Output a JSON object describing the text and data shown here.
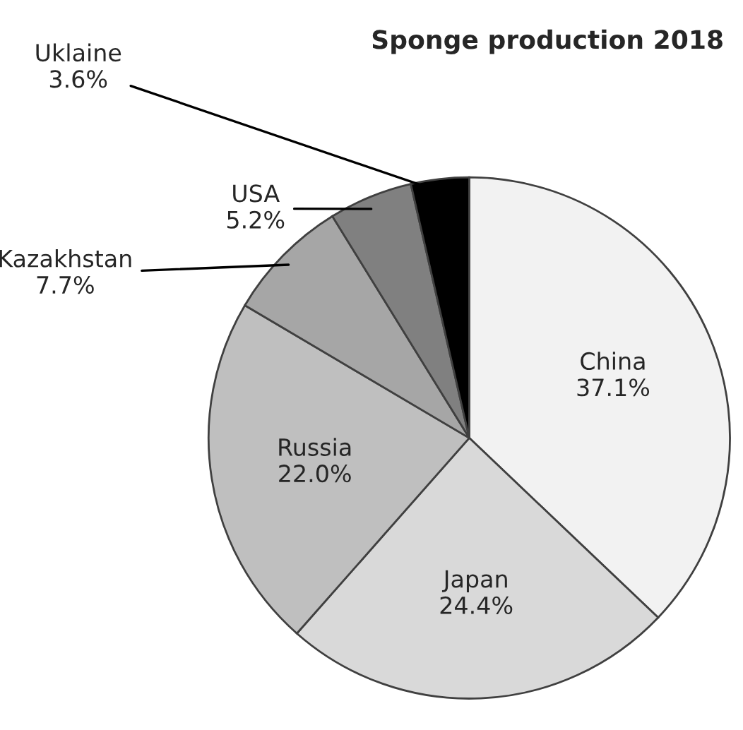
{
  "chart_data": {
    "type": "pie",
    "title": "Sponge production 2018",
    "categories": [
      "China",
      "Japan",
      "Russia",
      "Kazakhstan",
      "USA",
      "Uklaine"
    ],
    "values": [
      37.1,
      24.4,
      22.0,
      7.7,
      5.2,
      3.6
    ],
    "colors": [
      "#f2f2f2",
      "#d9d9d9",
      "#bfbfbf",
      "#a6a6a6",
      "#808080",
      "#000000"
    ],
    "value_labels": [
      "37.1%",
      "24.4%",
      "22.0%",
      "7.7%",
      "5.2%",
      "3.6%"
    ],
    "legend": false
  }
}
